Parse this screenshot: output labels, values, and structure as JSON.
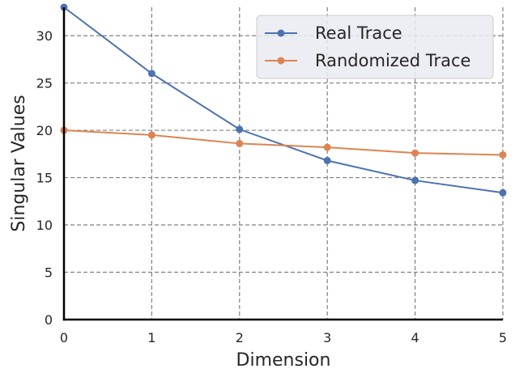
{
  "chart_data": {
    "type": "line",
    "title": "",
    "xlabel": "Dimension",
    "ylabel": "Singular Values",
    "xlim": [
      0,
      5
    ],
    "ylim": [
      0,
      33
    ],
    "x_ticks": [
      0,
      1,
      2,
      3,
      4,
      5
    ],
    "y_ticks": [
      0,
      5,
      10,
      15,
      20,
      25,
      30
    ],
    "x": [
      0,
      1,
      2,
      3,
      4,
      5
    ],
    "grid": true,
    "legend_position": "top-right",
    "series": [
      {
        "name": "Real Trace",
        "color": "#4c72b0",
        "marker": "circle",
        "values": [
          33.0,
          26.0,
          20.1,
          16.8,
          14.7,
          13.4
        ]
      },
      {
        "name": "Randomized Trace",
        "color": "#dd8452",
        "marker": "circle",
        "values": [
          20.0,
          19.5,
          18.6,
          18.2,
          17.6,
          17.4
        ]
      }
    ]
  }
}
